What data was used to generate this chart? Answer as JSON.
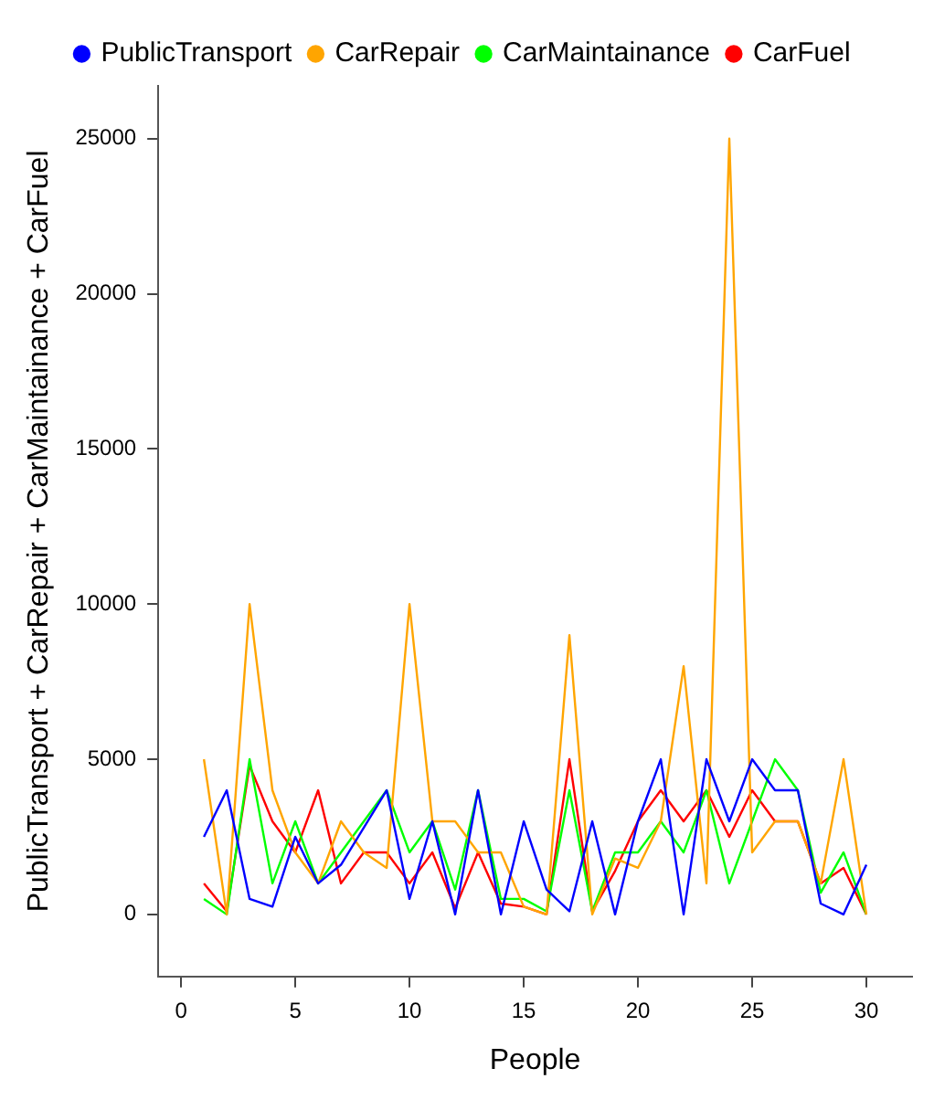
{
  "chart_data": {
    "type": "line",
    "xlabel": "People",
    "ylabel": "PublicTransport + CarRepair + CarMaintainance + CarFuel",
    "x": [
      1,
      2,
      3,
      4,
      5,
      6,
      7,
      8,
      9,
      10,
      11,
      12,
      13,
      14,
      15,
      16,
      17,
      18,
      19,
      20,
      21,
      22,
      23,
      24,
      25,
      26,
      27,
      28,
      29,
      30
    ],
    "series": [
      {
        "name": "PublicTransport",
        "color": "#0000ff",
        "values": [
          2500,
          4000,
          500,
          250,
          2500,
          1000,
          1600,
          2800,
          4000,
          500,
          3000,
          0,
          4000,
          0,
          3000,
          800,
          100,
          3000,
          0,
          3000,
          5000,
          0,
          5000,
          3000,
          5000,
          4000,
          4000,
          350,
          0,
          1600
        ]
      },
      {
        "name": "CarRepair",
        "color": "#ffa500",
        "values": [
          5000,
          0,
          10000,
          4000,
          2000,
          1000,
          3000,
          2000,
          1500,
          10000,
          3000,
          3000,
          2000,
          2000,
          250,
          0,
          9000,
          0,
          1800,
          1500,
          3000,
          8000,
          1000,
          25000,
          2000,
          3000,
          3000,
          1000,
          5000,
          0
        ]
      },
      {
        "name": "CarMaintainance",
        "color": "#00ff00",
        "values": [
          500,
          0,
          5000,
          1000,
          3000,
          1000,
          2000,
          3000,
          4000,
          2000,
          3000,
          800,
          4000,
          500,
          500,
          100,
          4000,
          100,
          2000,
          2000,
          3000,
          2000,
          4000,
          1000,
          3000,
          5000,
          4000,
          700,
          2000,
          0
        ]
      },
      {
        "name": "CarFuel",
        "color": "#ff0000",
        "values": [
          1000,
          100,
          4800,
          3000,
          2000,
          4000,
          1000,
          2000,
          2000,
          1000,
          2000,
          200,
          2000,
          350,
          250,
          0,
          5000,
          100,
          1400,
          3000,
          4000,
          3000,
          4000,
          2500,
          4000,
          3000,
          3000,
          1000,
          1500,
          0
        ]
      }
    ],
    "xlim": [
      -1,
      32
    ],
    "ylim": [
      -2000,
      26700
    ],
    "xticks": [
      0,
      5,
      10,
      15,
      20,
      25,
      30
    ],
    "yticks": [
      0,
      5000,
      10000,
      15000,
      20000,
      25000
    ],
    "legend": "top",
    "marker": "none",
    "line_style": "solid",
    "grid": false
  }
}
